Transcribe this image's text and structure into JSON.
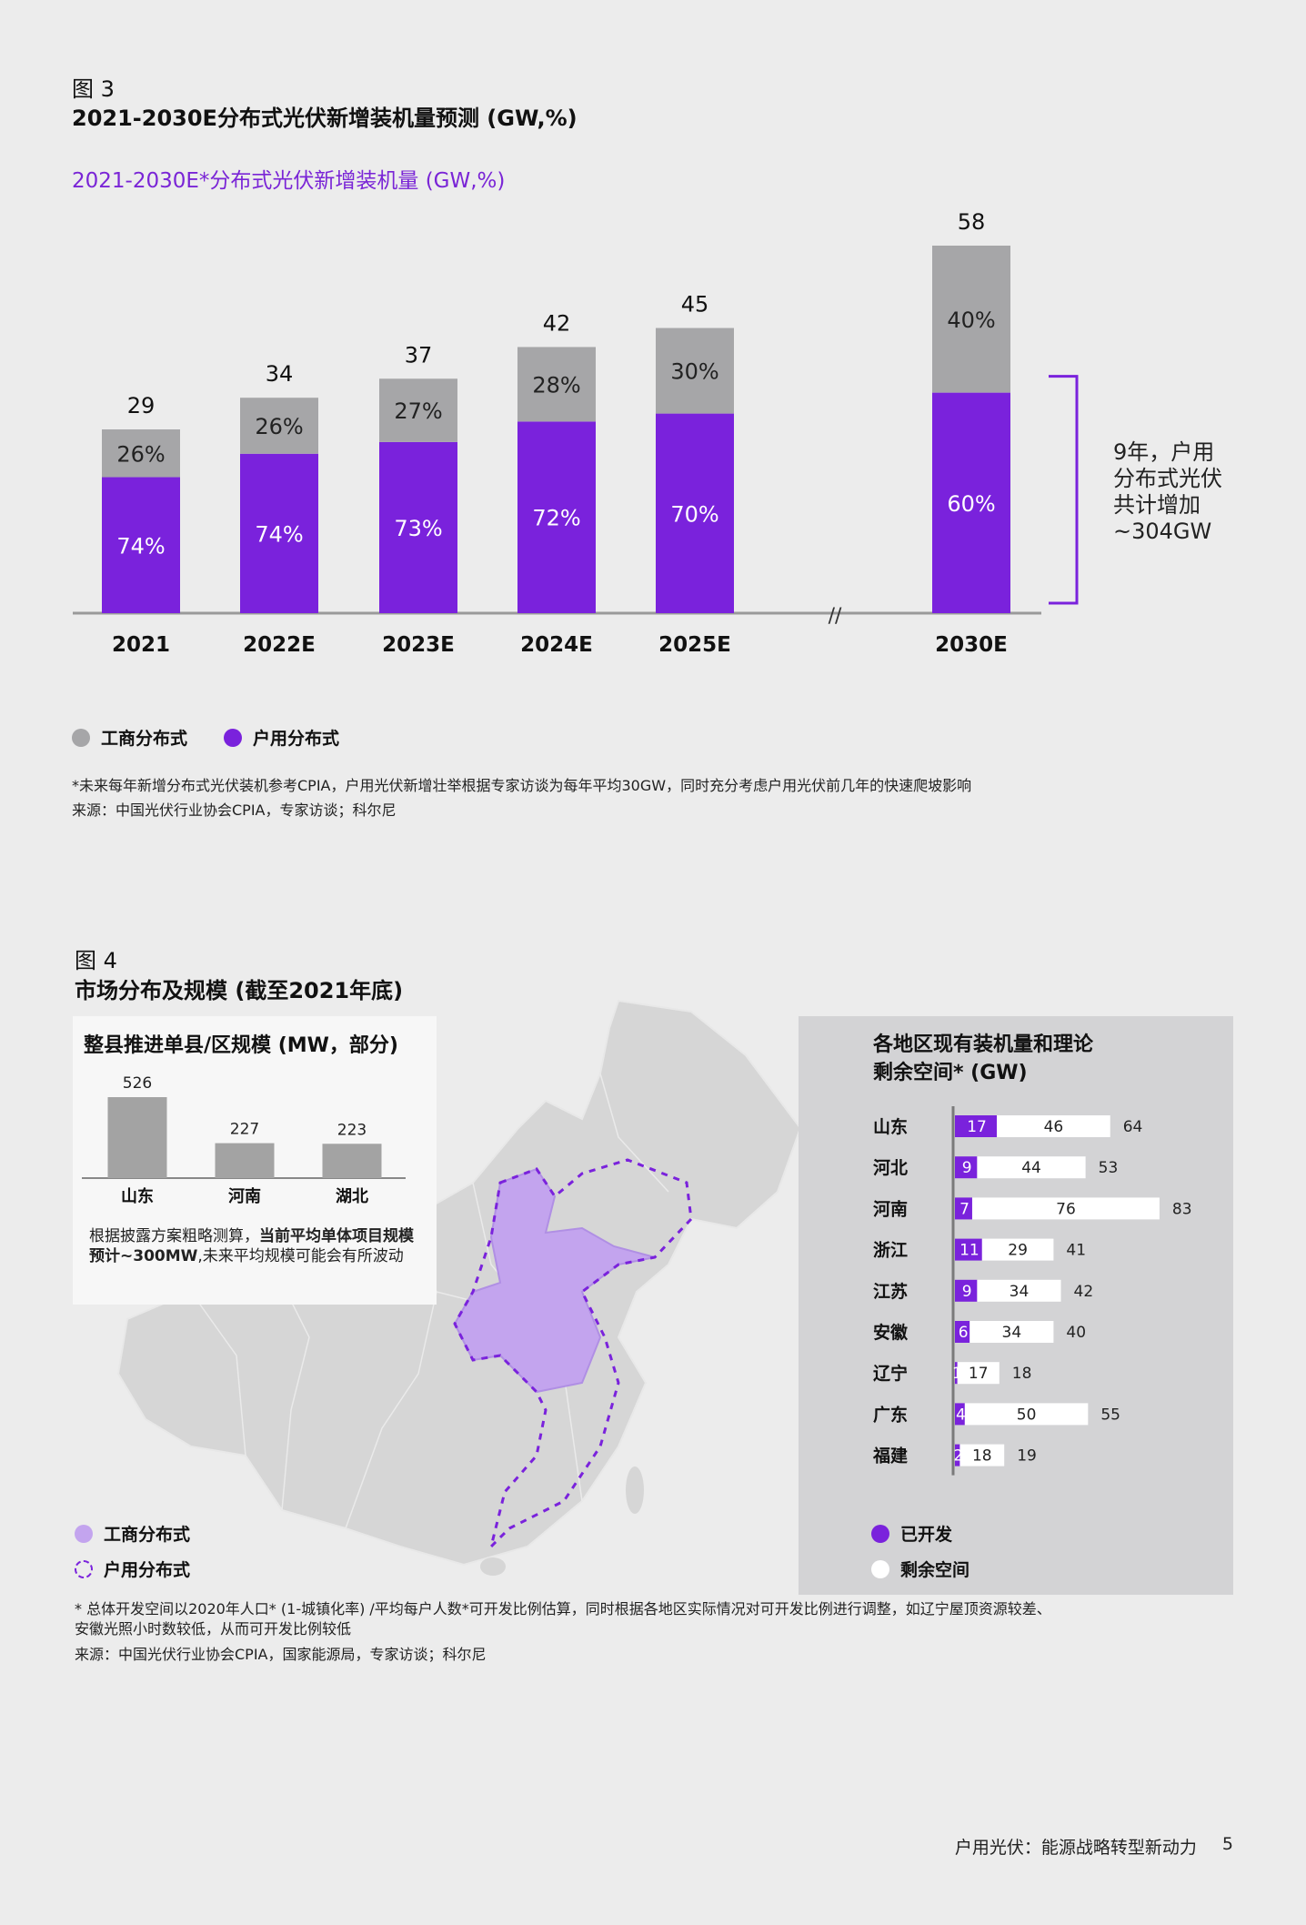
{
  "fig3": {
    "label": "图 3",
    "title": "2021-2030E分布式光伏新增装机量预测 (GW,%)",
    "subtitle": "2021-2030E*分布式光伏新增装机量 (GW,%)",
    "bracket_text": [
      "9年，户用",
      "分布式光伏",
      "共计增加",
      "~304GW"
    ],
    "axis_break": "//",
    "legend": [
      {
        "label": "工商分布式",
        "color": "#a6a6a8"
      },
      {
        "label": "户用分布式",
        "color": "#7a22dc"
      }
    ],
    "note": "*未来每年新增分布式光伏装机参考CPIA，户用光伏新增壮举根据专家访谈为每年平均30GW，同时充分考虑户用光伏前几年的快速爬坡影响",
    "source": "来源：中国光伏行业协会CPIA，专家访谈；科尔尼"
  },
  "fig4": {
    "label": "图 4",
    "title": "市场分布及规模 (截至2021年底)",
    "county_box": {
      "title": "整县推进单县/区规模 (MW，部分)",
      "text_normal": "根据披露方案粗略测算，",
      "text_bold": "当前平均单体项目规模预计~300MW",
      "text_tail": ",未来平均规模可能会有所波动"
    },
    "map_legend": [
      {
        "label": "工商分布式",
        "style": "fill"
      },
      {
        "label": "户用分布式",
        "style": "dashed"
      }
    ],
    "region_box": {
      "title_line1": "各地区现有装机量和理论",
      "title_line2": "剩余空间* (GW)",
      "legend": [
        {
          "label": "已开发",
          "color": "#7a22dc"
        },
        {
          "label": "剩余空间",
          "color": "#ffffff"
        }
      ]
    },
    "note_line1": "* 总体开发空间以2020年人口* (1-城镇化率) /平均每户人数*可开发比例估算，同时根据各地区实际情况对可开发比例进行调整，如辽宁屋顶资源较差、",
    "note_line2": "安徽光照小时数较低，从而可开发比例较低",
    "source": "来源：中国光伏行业协会CPIA，国家能源局，专家访谈；科尔尼"
  },
  "footer": {
    "text": "户用光伏：能源战略转型新动力",
    "page": "5"
  },
  "chart_data": [
    {
      "type": "bar",
      "stacked": true,
      "title": "2021-2030E*分布式光伏新增装机量 (GW,%)",
      "categories": [
        "2021",
        "2022E",
        "2023E",
        "2024E",
        "2025E",
        "2030E"
      ],
      "totals": [
        29,
        34,
        37,
        42,
        45,
        58
      ],
      "series": [
        {
          "name": "户用分布式",
          "color": "#7a22dc",
          "percent_labels": [
            "74%",
            "74%",
            "73%",
            "72%",
            "70%",
            "60%"
          ],
          "shares": [
            0.74,
            0.74,
            0.73,
            0.72,
            0.7,
            0.6
          ]
        },
        {
          "name": "工商分布式",
          "color": "#a6a6a8",
          "percent_labels": [
            "26%",
            "26%",
            "27%",
            "28%",
            "30%",
            "40%"
          ],
          "shares": [
            0.26,
            0.26,
            0.27,
            0.28,
            0.3,
            0.4
          ]
        }
      ],
      "ylim": [
        0,
        58
      ],
      "legend_position": "bottom-left"
    },
    {
      "type": "bar",
      "title": "整县推进单县/区规模 (MW，部分)",
      "categories": [
        "山东",
        "河南",
        "湖北"
      ],
      "values": [
        526,
        227,
        223
      ],
      "value_labels": [
        "526",
        "227",
        "223"
      ],
      "color": "#a3a3a3"
    },
    {
      "type": "bar",
      "orientation": "horizontal",
      "stacked": true,
      "title": "各地区现有装机量和理论剩余空间* (GW)",
      "categories": [
        "山东",
        "河北",
        "河南",
        "浙江",
        "江苏",
        "安徽",
        "辽宁",
        "广东",
        "福建"
      ],
      "series": [
        {
          "name": "已开发",
          "color": "#7a22dc",
          "values": [
            17,
            9,
            7,
            11,
            9,
            6,
            1,
            4,
            2
          ],
          "labels": [
            "17",
            "9",
            "7",
            "11",
            "9",
            "6",
            "1",
            "4",
            "2"
          ]
        },
        {
          "name": "剩余空间",
          "color": "#ffffff",
          "values": [
            46,
            44,
            76,
            29,
            34,
            34,
            17,
            50,
            18
          ],
          "labels": [
            "46",
            "44",
            "76",
            "29",
            "34",
            "34",
            "17",
            "50",
            "18"
          ]
        }
      ],
      "totals": [
        64,
        53,
        83,
        41,
        42,
        40,
        18,
        55,
        19
      ],
      "total_labels": [
        "64",
        "53",
        "83",
        "41",
        "42",
        "40",
        "18",
        "55",
        "19"
      ]
    }
  ]
}
